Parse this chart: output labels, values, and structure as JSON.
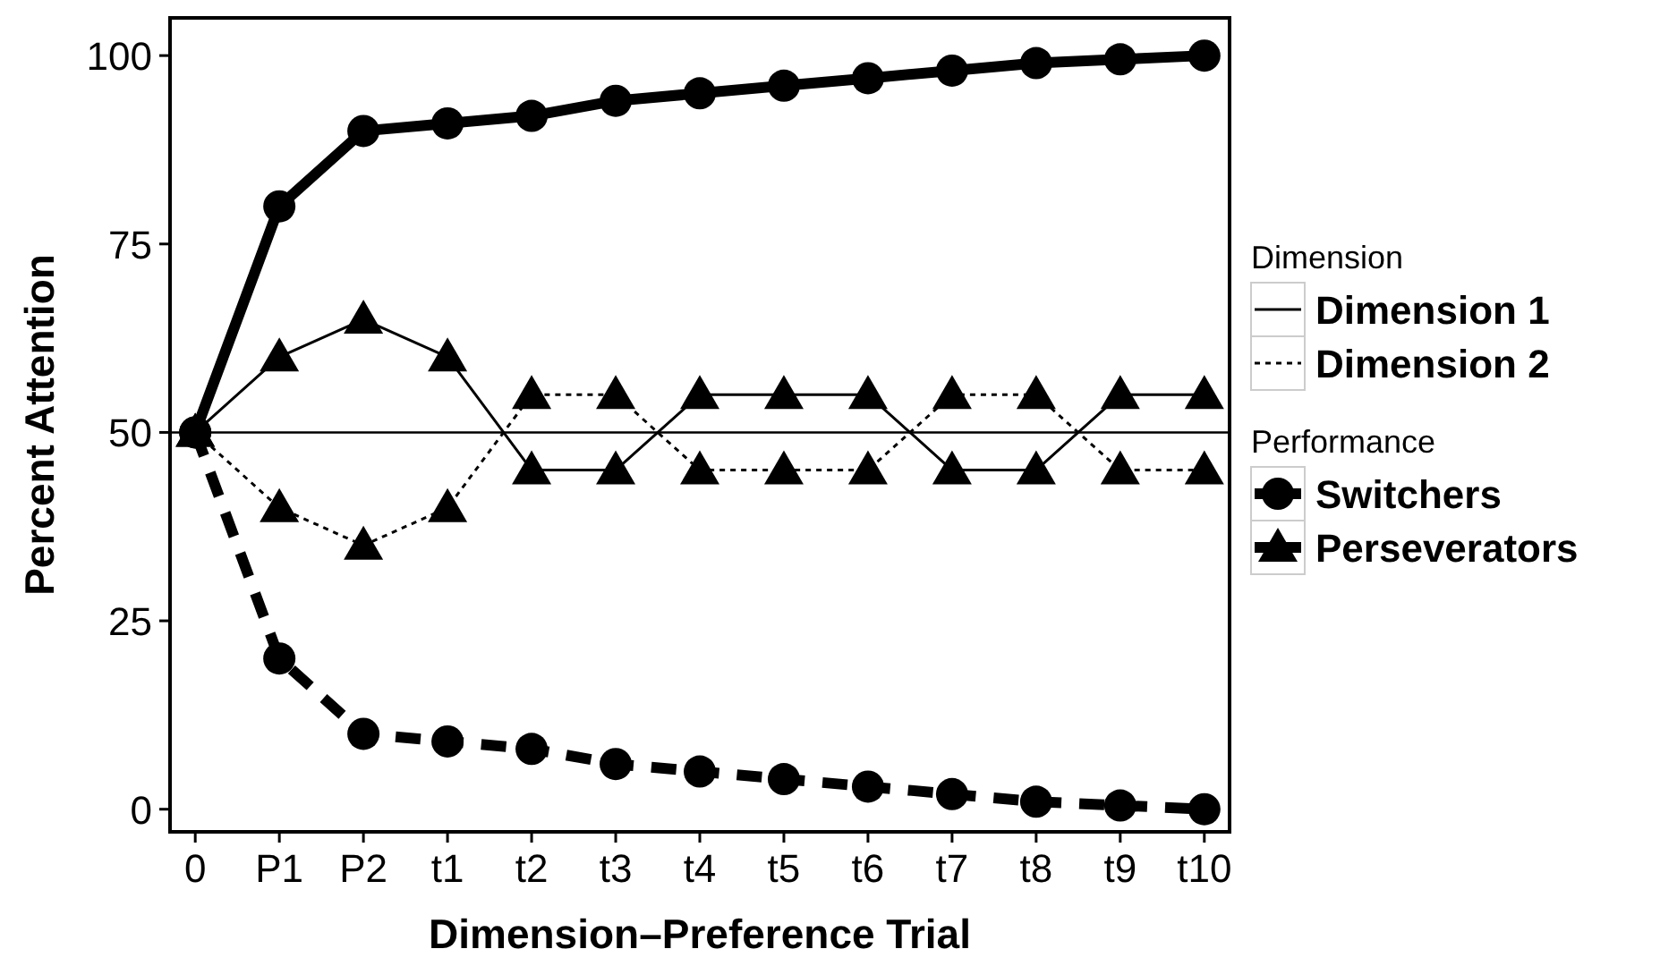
{
  "chart_data": {
    "type": "line",
    "xlabel": "Dimension–Preference Trial",
    "ylabel": "Percent Attention",
    "categories": [
      "0",
      "P1",
      "P2",
      "t1",
      "t2",
      "t3",
      "t4",
      "t5",
      "t6",
      "t7",
      "t8",
      "t9",
      "t10"
    ],
    "ylim": [
      -3,
      105
    ],
    "yticks": [
      0,
      25,
      50,
      75,
      100
    ],
    "grid": false,
    "legend": "right",
    "legend_title": "Dimension",
    "annotations": [
      "Performance"
    ],
    "ref_lines": [
      {
        "axis": "y",
        "value": 50,
        "color": "#000000",
        "line_style": "solid"
      }
    ],
    "series": [
      {
        "color": "#000000",
        "marker": "circle",
        "line_style": "solid",
        "values": [
          50,
          80,
          90,
          91,
          92,
          94,
          95,
          96,
          97,
          98,
          99,
          99.5,
          100
        ]
      },
      {
        "color": "#000000",
        "marker": "circle",
        "line_style": "dashed",
        "values": [
          50,
          20,
          10,
          9,
          8,
          6,
          5,
          4,
          3,
          2,
          1,
          0.5,
          0
        ]
      },
      {
        "color": "#000000",
        "marker": "triangle",
        "line_style": "solid",
        "values": [
          50,
          60,
          65,
          60,
          45,
          45,
          55,
          55,
          55,
          45,
          45,
          55,
          55
        ]
      },
      {
        "color": "#000000",
        "marker": "triangle",
        "line_style": "dotted",
        "values": [
          50,
          40,
          35,
          40,
          55,
          55,
          45,
          45,
          45,
          55,
          55,
          45,
          45
        ]
      },
      {
        "name": "Dimension 1",
        "color": "#000000",
        "marker": "none",
        "line_style": "solid",
        "values": [
          null,
          null,
          null,
          null,
          null,
          null,
          null,
          null,
          null,
          null,
          null,
          null,
          null
        ]
      },
      {
        "name": "Dimension 2",
        "color": "#000000",
        "marker": "none",
        "line_style": "dotted",
        "values": [
          null,
          null,
          null,
          null,
          null,
          null,
          null,
          null,
          null,
          null,
          null,
          null,
          null
        ]
      },
      {
        "name": "Switchers",
        "color": "#000000",
        "marker": "circle",
        "line_style": "solid",
        "values": [
          null,
          null,
          null,
          null,
          null,
          null,
          null,
          null,
          null,
          null,
          null,
          null,
          null
        ]
      },
      {
        "name": "Perseverators",
        "color": "#000000",
        "marker": "triangle",
        "line_style": "solid",
        "values": [
          null,
          null,
          null,
          null,
          null,
          null,
          null,
          null,
          null,
          null,
          null,
          null,
          null
        ]
      }
    ]
  }
}
